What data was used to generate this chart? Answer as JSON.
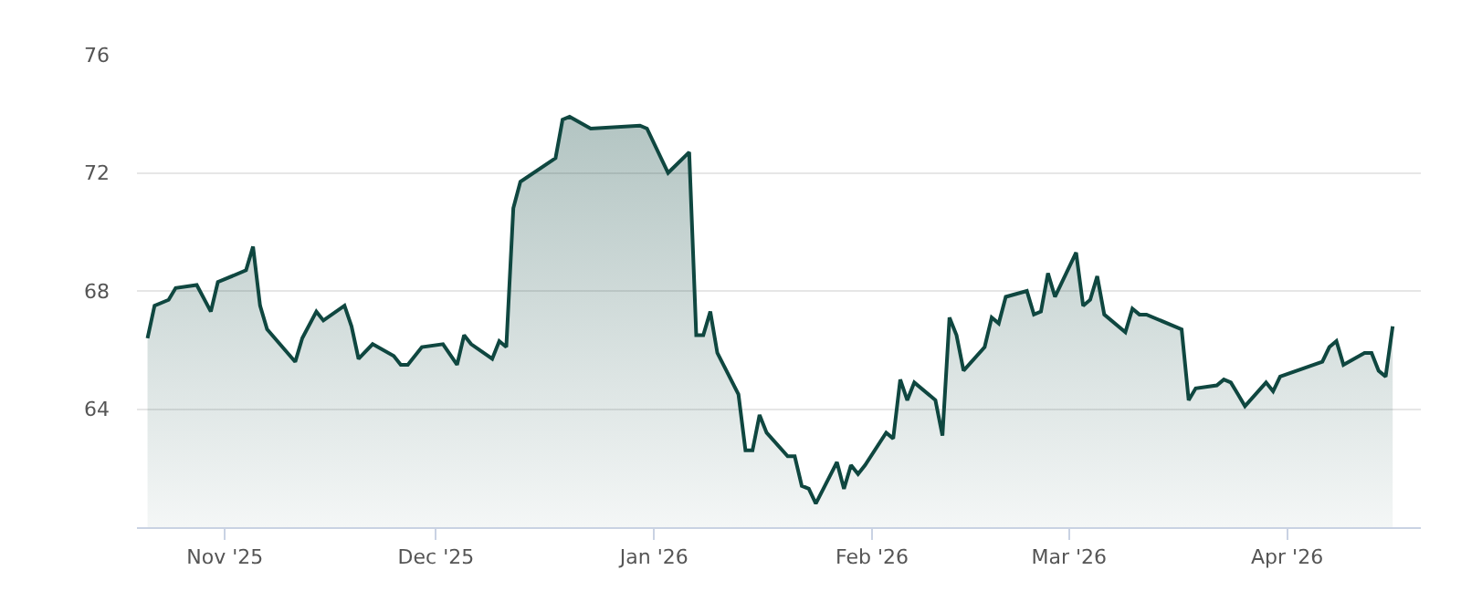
{
  "chart_data": {
    "type": "area",
    "x": [
      "2025-10-21",
      "2025-10-22",
      "2025-10-24",
      "2025-10-25",
      "2025-10-28",
      "2025-10-30",
      "2025-10-31",
      "2025-11-04",
      "2025-11-05",
      "2025-11-06",
      "2025-11-07",
      "2025-11-11",
      "2025-11-12",
      "2025-11-14",
      "2025-11-15",
      "2025-11-18",
      "2025-11-19",
      "2025-11-20",
      "2025-11-22",
      "2025-11-25",
      "2025-11-26",
      "2025-11-27",
      "2025-11-29",
      "2025-12-02",
      "2025-12-04",
      "2025-12-05",
      "2025-12-06",
      "2025-12-09",
      "2025-12-10",
      "2025-12-11",
      "2025-12-12",
      "2025-12-13",
      "2025-12-18",
      "2025-12-19",
      "2025-12-20",
      "2025-12-23",
      "2025-12-30",
      "2025-12-31",
      "2026-01-03",
      "2026-01-06",
      "2026-01-07",
      "2026-01-08",
      "2026-01-09",
      "2026-01-10",
      "2026-01-13",
      "2026-01-14",
      "2026-01-15",
      "2026-01-16",
      "2026-01-17",
      "2026-01-20",
      "2026-01-21",
      "2026-01-22",
      "2026-01-23",
      "2026-01-24",
      "2026-01-27",
      "2026-01-28",
      "2026-01-29",
      "2026-01-30",
      "2026-01-31",
      "2026-02-03",
      "2026-02-04",
      "2026-02-05",
      "2026-02-06",
      "2026-02-07",
      "2026-02-10",
      "2026-02-11",
      "2026-02-12",
      "2026-02-13",
      "2026-02-14",
      "2026-02-17",
      "2026-02-18",
      "2026-02-19",
      "2026-02-20",
      "2026-02-23",
      "2026-02-24",
      "2026-02-25",
      "2026-02-26",
      "2026-02-27",
      "2026-03-02",
      "2026-03-03",
      "2026-03-04",
      "2026-03-05",
      "2026-03-06",
      "2026-03-09",
      "2026-03-10",
      "2026-03-11",
      "2026-03-12",
      "2026-03-17",
      "2026-03-18",
      "2026-03-19",
      "2026-03-22",
      "2026-03-23",
      "2026-03-24",
      "2026-03-25",
      "2026-03-26",
      "2026-03-29",
      "2026-03-30",
      "2026-03-31",
      "2026-04-06",
      "2026-04-07",
      "2026-04-08",
      "2026-04-09",
      "2026-04-12",
      "2026-04-13",
      "2026-04-14",
      "2026-04-15",
      "2026-04-16"
    ],
    "series": [
      {
        "color": "#0f4740",
        "values": [
          66.4,
          67.5,
          67.7,
          68.1,
          68.2,
          67.3,
          68.3,
          68.7,
          69.5,
          67.5,
          66.7,
          65.6,
          66.4,
          67.3,
          67.0,
          67.5,
          66.8,
          65.7,
          66.2,
          65.8,
          65.5,
          65.5,
          66.1,
          66.2,
          65.5,
          66.5,
          66.2,
          65.7,
          66.3,
          66.1,
          70.8,
          71.7,
          72.5,
          73.8,
          73.9,
          73.5,
          73.6,
          73.5,
          72.0,
          72.7,
          66.5,
          66.5,
          67.3,
          65.9,
          64.5,
          62.6,
          62.6,
          63.8,
          63.2,
          62.4,
          62.4,
          61.4,
          61.3,
          60.8,
          62.2,
          61.3,
          62.1,
          61.8,
          62.1,
          63.2,
          63.0,
          65.0,
          64.3,
          64.9,
          64.3,
          63.1,
          67.1,
          66.5,
          65.3,
          66.1,
          67.1,
          66.9,
          67.8,
          68.0,
          67.2,
          67.3,
          68.6,
          67.8,
          69.3,
          67.5,
          67.7,
          68.5,
          67.2,
          66.6,
          67.4,
          67.2,
          67.2,
          66.7,
          64.3,
          64.7,
          64.8,
          65.0,
          64.9,
          64.5,
          64.1,
          64.9,
          64.6,
          65.1,
          65.6,
          66.1,
          66.3,
          65.5,
          65.9,
          65.9,
          65.3,
          65.1,
          66.8
        ]
      }
    ],
    "xlim": [
      "2025-10-19T12:00",
      "2026-04-20"
    ],
    "xticks": [
      {
        "value": "2025-11-01",
        "label": "Nov '25"
      },
      {
        "value": "2025-12-01",
        "label": "Dec '25"
      },
      {
        "value": "2026-01-01",
        "label": "Jan '26"
      },
      {
        "value": "2026-02-01",
        "label": "Feb '26"
      },
      {
        "value": "2026-03-01",
        "label": "Mar '26"
      },
      {
        "value": "2026-04-01",
        "label": "Apr '26"
      }
    ],
    "ylim": [
      60,
      76
    ],
    "yticks": [
      64,
      68,
      72,
      76
    ],
    "grid": "y",
    "marker": "none",
    "line_style": "solid"
  }
}
